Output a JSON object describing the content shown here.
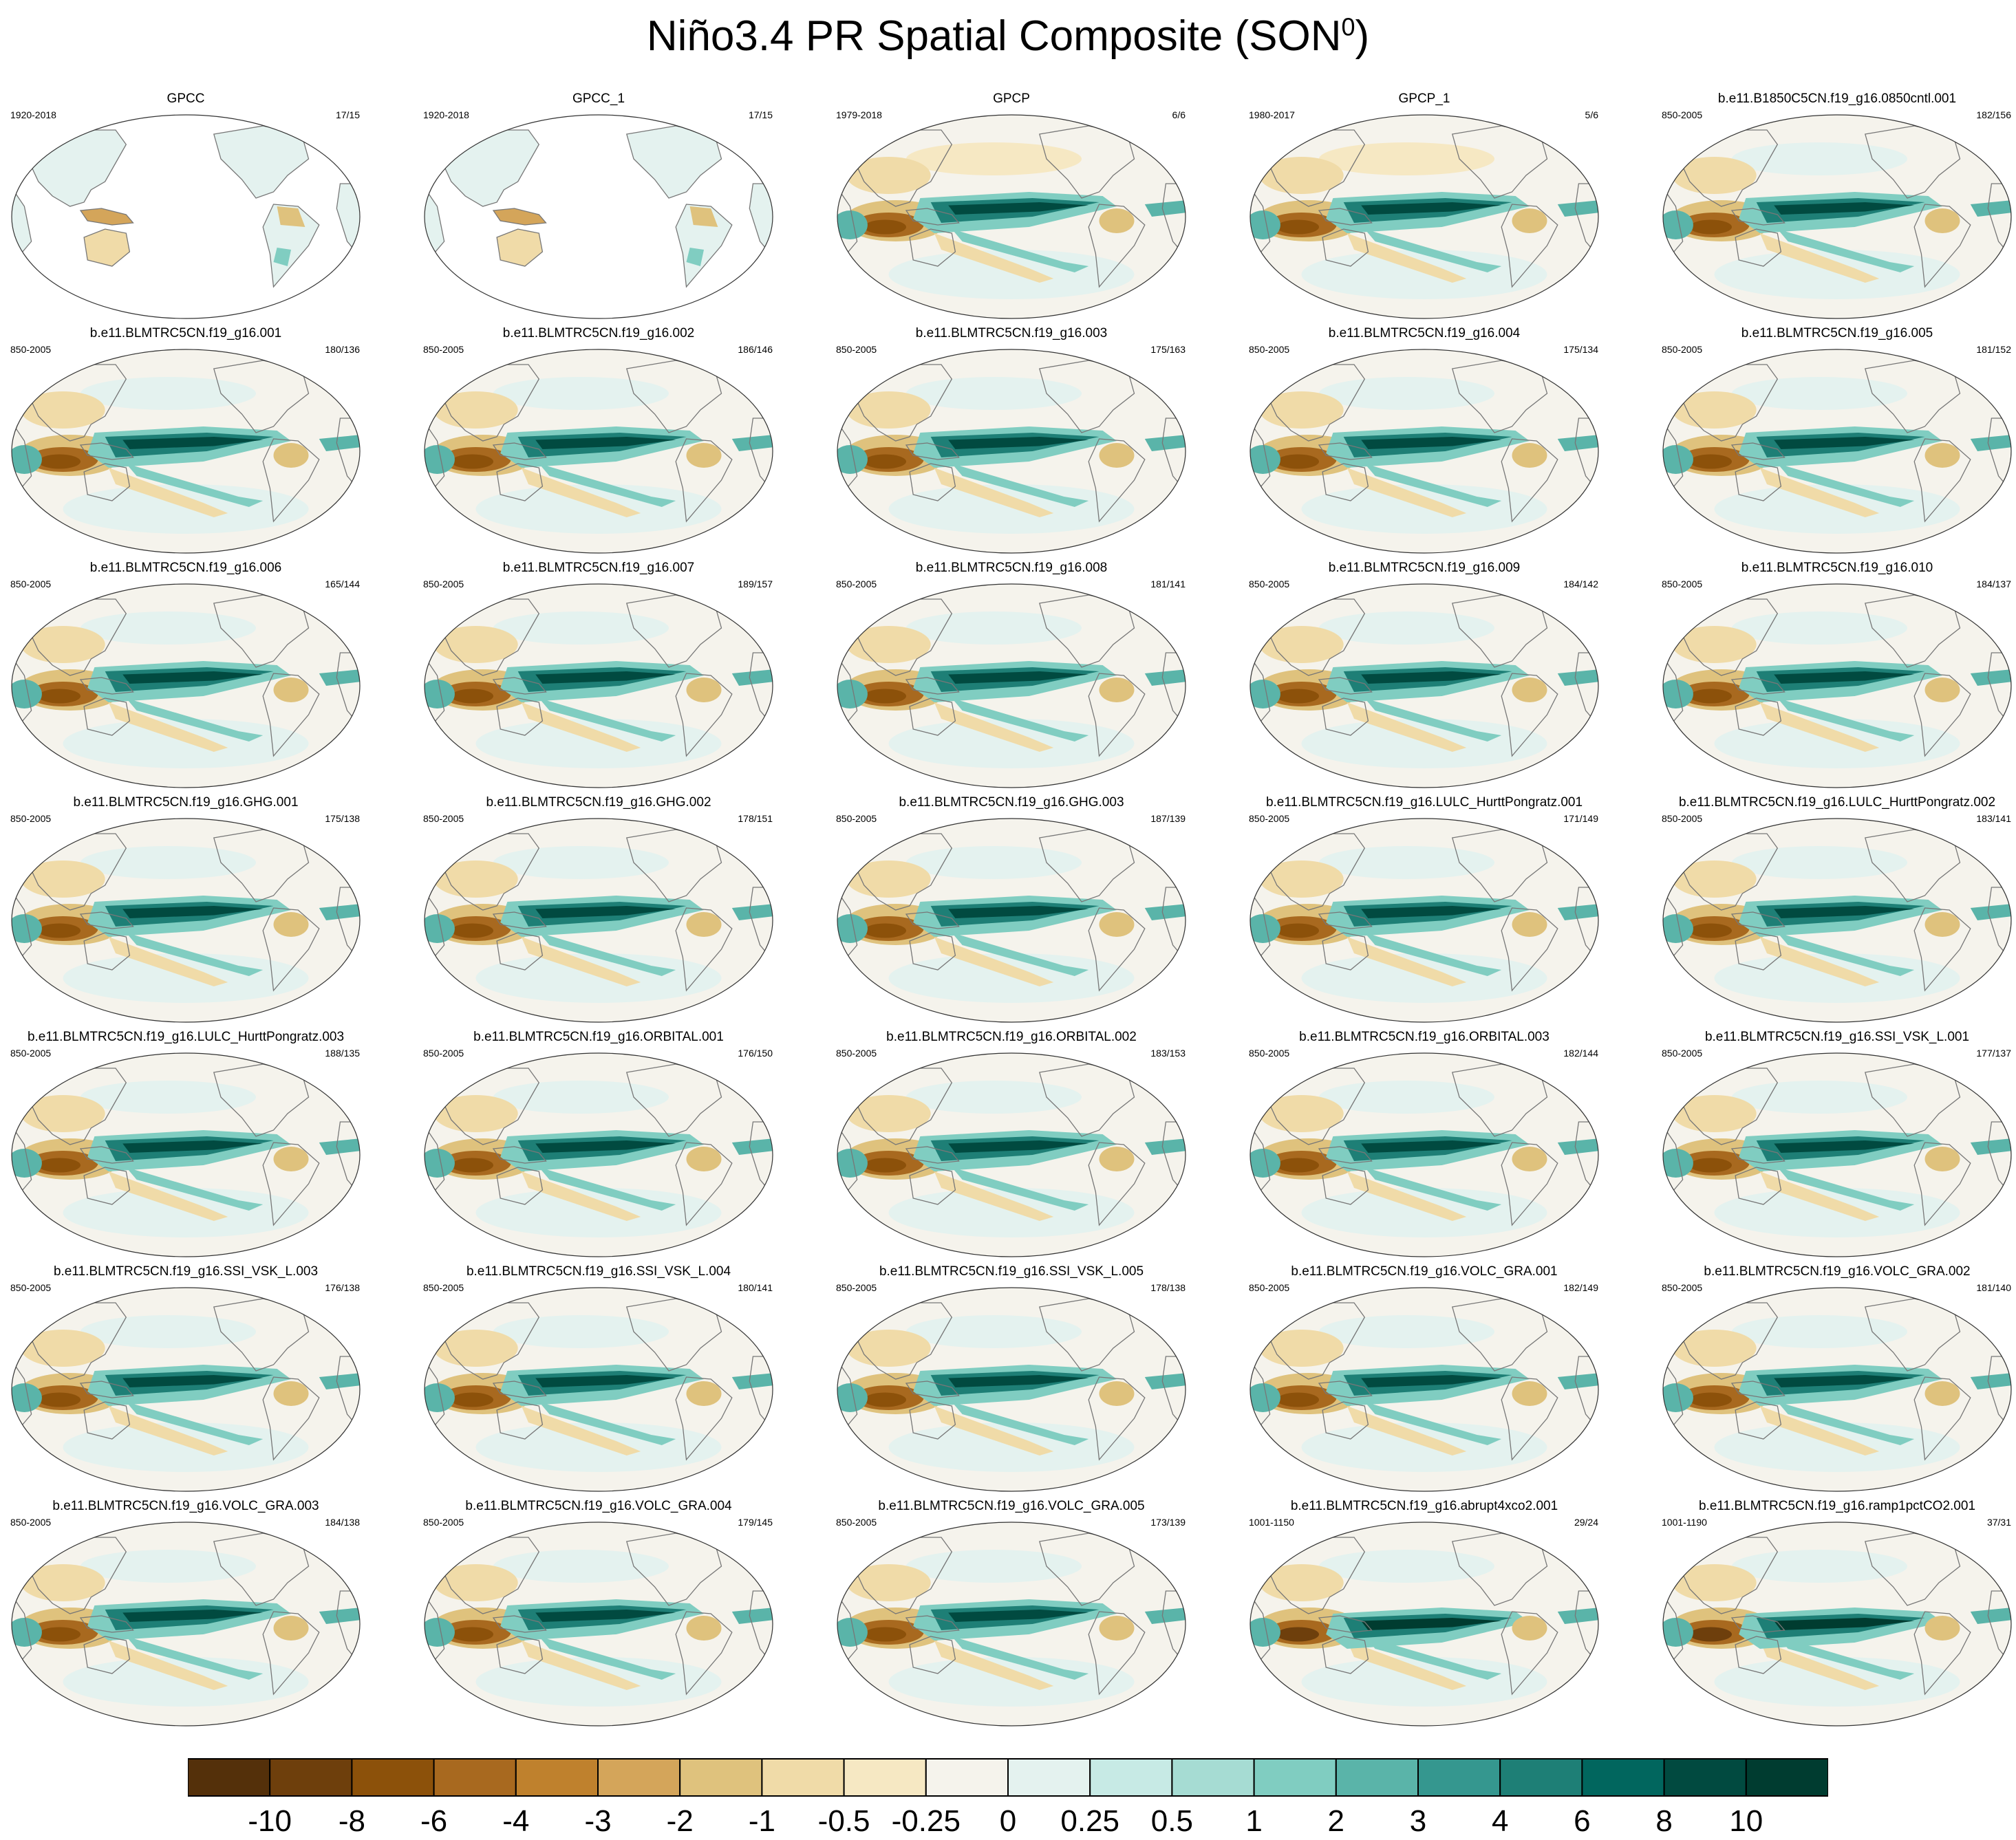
{
  "title": "Niño3.4 PR Spatial Composite (SON",
  "title_sup": "0",
  "title_close": ")",
  "panels": [
    {
      "name": "GPCC",
      "years": "1920-2018",
      "count": "17/15",
      "kind": "obs_land"
    },
    {
      "name": "GPCC_1",
      "years": "1920-2018",
      "count": "17/15",
      "kind": "obs_land"
    },
    {
      "name": "GPCP",
      "years": "1979-2018",
      "count": "6/6",
      "kind": "obs"
    },
    {
      "name": "GPCP_1",
      "years": "1980-2017",
      "count": "5/6",
      "kind": "obs"
    },
    {
      "name": "b.e11.B1850C5CN.f19_g16.0850cntl.001",
      "years": "850-2005",
      "count": "182/156",
      "kind": "model"
    },
    {
      "name": "b.e11.BLMTRC5CN.f19_g16.001",
      "years": "850-2005",
      "count": "180/136",
      "kind": "model"
    },
    {
      "name": "b.e11.BLMTRC5CN.f19_g16.002",
      "years": "850-2005",
      "count": "186/146",
      "kind": "model"
    },
    {
      "name": "b.e11.BLMTRC5CN.f19_g16.003",
      "years": "850-2005",
      "count": "175/163",
      "kind": "model"
    },
    {
      "name": "b.e11.BLMTRC5CN.f19_g16.004",
      "years": "850-2005",
      "count": "175/134",
      "kind": "model"
    },
    {
      "name": "b.e11.BLMTRC5CN.f19_g16.005",
      "years": "850-2005",
      "count": "181/152",
      "kind": "model"
    },
    {
      "name": "b.e11.BLMTRC5CN.f19_g16.006",
      "years": "850-2005",
      "count": "165/144",
      "kind": "model"
    },
    {
      "name": "b.e11.BLMTRC5CN.f19_g16.007",
      "years": "850-2005",
      "count": "189/157",
      "kind": "model"
    },
    {
      "name": "b.e11.BLMTRC5CN.f19_g16.008",
      "years": "850-2005",
      "count": "181/141",
      "kind": "model"
    },
    {
      "name": "b.e11.BLMTRC5CN.f19_g16.009",
      "years": "850-2005",
      "count": "184/142",
      "kind": "model"
    },
    {
      "name": "b.e11.BLMTRC5CN.f19_g16.010",
      "years": "850-2005",
      "count": "184/137",
      "kind": "model"
    },
    {
      "name": "b.e11.BLMTRC5CN.f19_g16.GHG.001",
      "years": "850-2005",
      "count": "175/138",
      "kind": "model"
    },
    {
      "name": "b.e11.BLMTRC5CN.f19_g16.GHG.002",
      "years": "850-2005",
      "count": "178/151",
      "kind": "model"
    },
    {
      "name": "b.e11.BLMTRC5CN.f19_g16.GHG.003",
      "years": "850-2005",
      "count": "187/139",
      "kind": "model"
    },
    {
      "name": "b.e11.BLMTRC5CN.f19_g16.LULC_HurttPongratz.001",
      "years": "850-2005",
      "count": "171/149",
      "kind": "model"
    },
    {
      "name": "b.e11.BLMTRC5CN.f19_g16.LULC_HurttPongratz.002",
      "years": "850-2005",
      "count": "183/141",
      "kind": "model"
    },
    {
      "name": "b.e11.BLMTRC5CN.f19_g16.LULC_HurttPongratz.003",
      "years": "850-2005",
      "count": "188/135",
      "kind": "model"
    },
    {
      "name": "b.e11.BLMTRC5CN.f19_g16.ORBITAL.001",
      "years": "850-2005",
      "count": "176/150",
      "kind": "model"
    },
    {
      "name": "b.e11.BLMTRC5CN.f19_g16.ORBITAL.002",
      "years": "850-2005",
      "count": "183/153",
      "kind": "model"
    },
    {
      "name": "b.e11.BLMTRC5CN.f19_g16.ORBITAL.003",
      "years": "850-2005",
      "count": "182/144",
      "kind": "model"
    },
    {
      "name": "b.e11.BLMTRC5CN.f19_g16.SSI_VSK_L.001",
      "years": "850-2005",
      "count": "177/137",
      "kind": "model"
    },
    {
      "name": "b.e11.BLMTRC5CN.f19_g16.SSI_VSK_L.003",
      "years": "850-2005",
      "count": "176/138",
      "kind": "model"
    },
    {
      "name": "b.e11.BLMTRC5CN.f19_g16.SSI_VSK_L.004",
      "years": "850-2005",
      "count": "180/141",
      "kind": "model"
    },
    {
      "name": "b.e11.BLMTRC5CN.f19_g16.SSI_VSK_L.005",
      "years": "850-2005",
      "count": "178/138",
      "kind": "model"
    },
    {
      "name": "b.e11.BLMTRC5CN.f19_g16.VOLC_GRA.001",
      "years": "850-2005",
      "count": "182/149",
      "kind": "model"
    },
    {
      "name": "b.e11.BLMTRC5CN.f19_g16.VOLC_GRA.002",
      "years": "850-2005",
      "count": "181/140",
      "kind": "model"
    },
    {
      "name": "b.e11.BLMTRC5CN.f19_g16.VOLC_GRA.003",
      "years": "850-2005",
      "count": "184/138",
      "kind": "model"
    },
    {
      "name": "b.e11.BLMTRC5CN.f19_g16.VOLC_GRA.004",
      "years": "850-2005",
      "count": "179/145",
      "kind": "model"
    },
    {
      "name": "b.e11.BLMTRC5CN.f19_g16.VOLC_GRA.005",
      "years": "850-2005",
      "count": "173/139",
      "kind": "model"
    },
    {
      "name": "b.e11.BLMTRC5CN.f19_g16.abrupt4xco2.001",
      "years": "1001-1150",
      "count": "29/24",
      "kind": "model_strong"
    },
    {
      "name": "b.e11.BLMTRC5CN.f19_g16.ramp1pctCO2.001",
      "years": "1001-1190",
      "count": "37/31",
      "kind": "model_strong"
    }
  ],
  "chart_data": {
    "type": "heatmap",
    "title": "Niño3.4 PR Spatial Composite (SON0)",
    "layout": {
      "rows": 7,
      "cols": 5
    },
    "colorbar": {
      "orientation": "horizontal",
      "placement": "bottom",
      "levels": [
        "-10",
        "-8",
        "-6",
        "-4",
        "-3",
        "-2",
        "-1",
        "-0.5",
        "-0.25",
        "0",
        "0.25",
        "0.5",
        "1",
        "2",
        "3",
        "4",
        "6",
        "8",
        "10"
      ],
      "colors": [
        "#54300a",
        "#6e3f0c",
        "#8c510a",
        "#a8691f",
        "#bf812d",
        "#d4a55a",
        "#dfc27d",
        "#f0dba8",
        "#f6e8c3",
        "#f5f3ec",
        "#e4f2ef",
        "#c7eae5",
        "#a6dcd3",
        "#80cdc1",
        "#5ab4a9",
        "#35978f",
        "#1e7f76",
        "#01665e",
        "#014a40",
        "#003c30"
      ]
    }
  }
}
